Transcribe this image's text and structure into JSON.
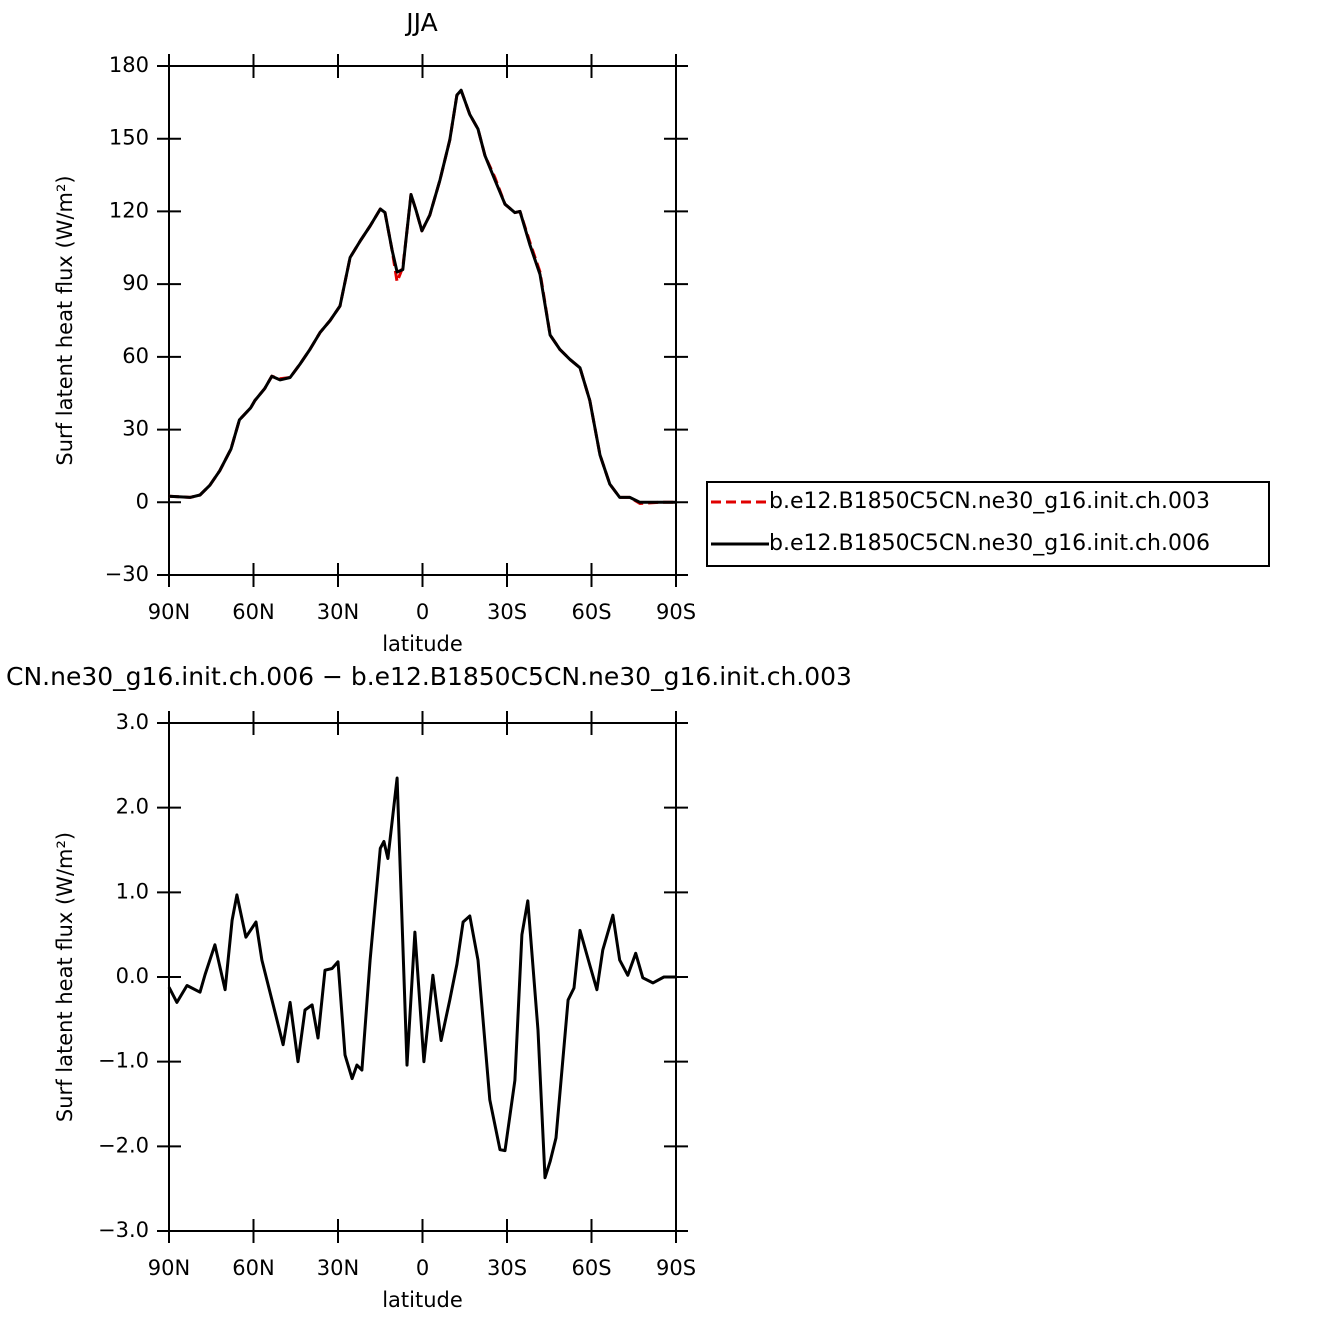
{
  "chart_data": [
    {
      "type": "line",
      "title": "JJA",
      "ylabel": "Surf latent heat flux (W/m²)",
      "xlabel": "latitude",
      "xlim": [
        90,
        -90
      ],
      "xticks": [
        {
          "value": 90,
          "label": "90N"
        },
        {
          "value": 60,
          "label": "60N"
        },
        {
          "value": 30,
          "label": "30N"
        },
        0,
        {
          "value": -30,
          "label": "30S"
        },
        {
          "value": -60,
          "label": "60S"
        },
        {
          "value": -90,
          "label": "90S"
        }
      ],
      "ylim": [
        -30,
        180
      ],
      "yticks": [
        {
          "value": -30,
          "label": "−30"
        },
        0,
        30,
        60,
        90,
        120,
        150,
        180
      ],
      "legend": "right",
      "x": [
        90,
        82.5,
        79,
        75.5,
        72,
        68,
        65,
        61,
        59.5,
        56,
        53.5,
        50.6,
        47,
        43.5,
        40,
        36.4,
        32.8,
        29.3,
        25.7,
        22,
        18.6,
        15,
        13.3,
        10.8,
        9,
        7,
        5.9,
        4.1,
        2.3,
        0.2,
        -2.6,
        -6.2,
        -9.7,
        -12.2,
        -13.7,
        -16.8,
        -19.7,
        -22.2,
        -25.7,
        -29.3,
        -32.8,
        -34.6,
        -38.2,
        -41.7,
        -45.3,
        -48.8,
        -52.3,
        -55.9,
        -59.4,
        -63,
        -66.5,
        -70,
        -73.6,
        -77.2,
        -84.2,
        -90
      ],
      "series": [
        {
          "name": "b.e12.B1850C5CN.ne30_g16.init.ch.003",
          "color": "#e00000",
          "dash": "dashed",
          "values": [
            2.5,
            2,
            3,
            7,
            13,
            22,
            34,
            39,
            42,
            47,
            52,
            51,
            51.5,
            57,
            63,
            70,
            75,
            81,
            101,
            108,
            114,
            121,
            119.5,
            104,
            91,
            97,
            108,
            127,
            120.5,
            112,
            118.5,
            133,
            149.5,
            168,
            170,
            160,
            154,
            143,
            134,
            123,
            119.5,
            120,
            107,
            95,
            69,
            63,
            59,
            55.5,
            42,
            19.5,
            7.5,
            2,
            2,
            -0.5,
            0,
            0
          ]
        },
        {
          "name": "b.e12.B1850C5CN.ne30_g16.init.ch.006",
          "color": "#000000",
          "dash": "solid",
          "values": [
            2.5,
            2,
            3,
            7,
            13,
            22,
            34,
            39,
            42,
            47,
            52,
            50.5,
            51.5,
            57,
            63,
            70,
            75,
            81,
            101,
            108,
            114,
            121,
            119.5,
            104,
            95,
            96,
            108,
            127,
            120.5,
            112,
            118.5,
            133,
            149.5,
            168,
            170,
            160,
            154,
            143,
            133,
            123,
            119.5,
            120,
            106,
            94,
            69,
            63,
            59,
            55.5,
            42,
            19.5,
            7.5,
            2,
            2,
            0,
            0,
            0
          ]
        }
      ]
    },
    {
      "type": "line",
      "title": "CN.ne30_g16.init.ch.006 − b.e12.B1850C5CN.ne30_g16.init.ch.003",
      "ylabel": "Surf latent heat flux (W/m²)",
      "xlabel": "latitude",
      "xlim": [
        90,
        -90
      ],
      "xticks": [
        {
          "value": 90,
          "label": "90N"
        },
        {
          "value": 60,
          "label": "60N"
        },
        {
          "value": 30,
          "label": "30N"
        },
        0,
        {
          "value": -30,
          "label": "30S"
        },
        {
          "value": -60,
          "label": "60S"
        },
        {
          "value": -90,
          "label": "90S"
        }
      ],
      "ylim": [
        -3,
        3
      ],
      "yticks": [
        {
          "value": -3,
          "label": "−3.0"
        },
        {
          "value": -2,
          "label": "−2.0"
        },
        {
          "value": -1,
          "label": "−1.0"
        },
        {
          "value": 0,
          "label": "0.0"
        },
        {
          "value": 1,
          "label": "1.0"
        },
        {
          "value": 2,
          "label": "2.0"
        },
        {
          "value": 3,
          "label": "3.0"
        }
      ],
      "x": [
        90,
        87.2,
        83.6,
        79,
        77.2,
        73.7,
        70.1,
        67.6,
        65.9,
        62.7,
        59.1,
        57,
        52.4,
        49.5,
        47,
        44.2,
        41.7,
        39.2,
        37.1,
        34.6,
        32.1,
        30,
        27.5,
        25,
        23.3,
        21.5,
        18.6,
        15,
        13.7,
        12.3,
        9,
        5.5,
        2.7,
        -0.5,
        -3.7,
        -6.6,
        -9.7,
        -12.2,
        -14.4,
        -16.8,
        -19.7,
        -23.9,
        -27.5,
        -29.3,
        -32.8,
        -35.3,
        -37.4,
        -41,
        -43.5,
        -45.3,
        -47.4,
        -51.7,
        -53.8,
        -55.9,
        -59.4,
        -61.9,
        -64,
        -67.6,
        -70,
        -72.9,
        -75.7,
        -78.2,
        -81.8,
        -85.7,
        -90
      ],
      "series": [
        {
          "color": "#000000",
          "dash": "solid",
          "values": [
            -0.12,
            -0.3,
            -0.1,
            -0.18,
            0.03,
            0.38,
            -0.15,
            0.67,
            0.97,
            0.47,
            0.65,
            0.2,
            -0.41,
            -0.8,
            -0.3,
            -1.0,
            -0.39,
            -0.33,
            -0.72,
            0.08,
            0.1,
            0.18,
            -0.92,
            -1.2,
            -1.04,
            -1.1,
            0.2,
            1.52,
            1.6,
            1.4,
            2.35,
            -1.04,
            0.53,
            -1.0,
            0.02,
            -0.75,
            -0.27,
            0.15,
            0.65,
            0.72,
            0.2,
            -1.45,
            -2.04,
            -2.05,
            -1.22,
            0.5,
            0.9,
            -0.63,
            -2.37,
            -2.18,
            -1.9,
            -0.27,
            -0.13,
            0.55,
            0.14,
            -0.15,
            0.32,
            0.73,
            0.2,
            0.02,
            0.28,
            -0.01,
            -0.07,
            0,
            0
          ]
        }
      ]
    }
  ]
}
